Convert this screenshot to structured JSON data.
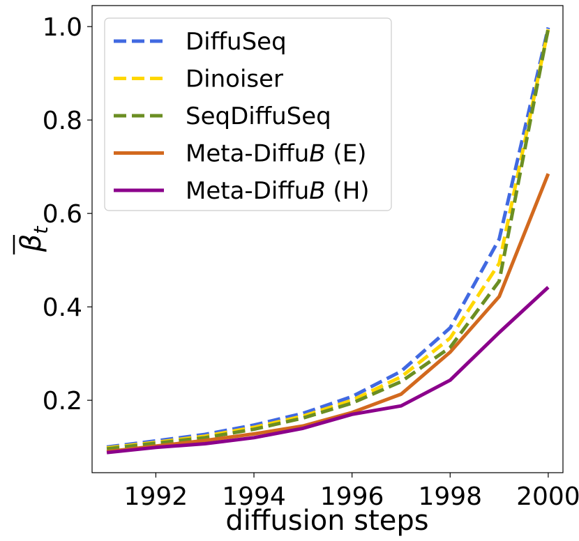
{
  "chart_data": {
    "type": "line",
    "title": "",
    "xlabel": "diffusion steps",
    "ylabel": "β̄_t",
    "ylabel_symbol": "β",
    "ylabel_subscript": "t",
    "xlim": [
      1990.7,
      2000.3
    ],
    "ylim": [
      0.045,
      1.045
    ],
    "xticks": [
      1992,
      1994,
      1996,
      1998,
      2000
    ],
    "yticks": [
      0.2,
      0.4,
      0.6,
      0.8,
      1.0
    ],
    "ytick_labels": [
      "0.2",
      "0.4",
      "0.6",
      "0.8",
      "1.0"
    ],
    "grid": false,
    "legend_position": "top-left",
    "x": [
      1991,
      1992,
      1993,
      1994,
      1995,
      1996,
      1997,
      1998,
      1999,
      2000
    ],
    "series": [
      {
        "name": "DiffuSeq",
        "label_prefix": "DiffuSeq",
        "label_italic": "",
        "label_suffix": "",
        "color": "#4169E1",
        "dashed": true,
        "values": [
          0.1,
          0.113,
          0.127,
          0.147,
          0.172,
          0.208,
          0.262,
          0.355,
          0.545,
          0.998
        ]
      },
      {
        "name": "Dinoiser",
        "label_prefix": "Dinoiser",
        "label_italic": "",
        "label_suffix": "",
        "color": "#FFD700",
        "dashed": true,
        "values": [
          0.098,
          0.11,
          0.123,
          0.142,
          0.166,
          0.2,
          0.25,
          0.333,
          0.493,
          0.994
        ]
      },
      {
        "name": "SeqDiffuSeq",
        "label_prefix": "SeqDiffuSeq",
        "label_italic": "",
        "label_suffix": "",
        "color": "#6B8E23",
        "dashed": true,
        "values": [
          0.096,
          0.108,
          0.12,
          0.138,
          0.162,
          0.194,
          0.24,
          0.313,
          0.455,
          0.996
        ]
      },
      {
        "name": "Meta-DiffuB (E)",
        "label_prefix": "Meta-Diffu",
        "label_italic": "B",
        "label_suffix": " (E)",
        "color": "#D2691E",
        "dashed": false,
        "values": [
          0.09,
          0.102,
          0.114,
          0.128,
          0.145,
          0.174,
          0.213,
          0.303,
          0.422,
          0.685
        ]
      },
      {
        "name": "Meta-DiffuB (H)",
        "label_prefix": "Meta-Diffu",
        "label_italic": "B",
        "label_suffix": " (H)",
        "color": "#8B008B",
        "dashed": false,
        "values": [
          0.088,
          0.099,
          0.107,
          0.12,
          0.14,
          0.17,
          0.188,
          0.243,
          0.345,
          0.442
        ]
      }
    ]
  }
}
